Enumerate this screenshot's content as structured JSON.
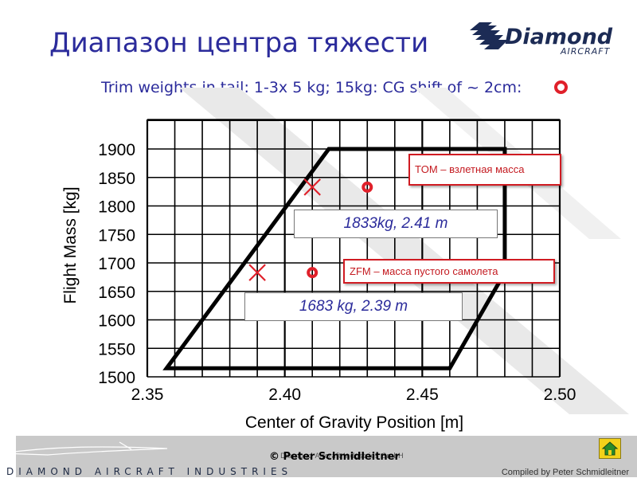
{
  "slide": {
    "title": "Диапазон центра тяжести",
    "trim_note": "Trim weights in tail: 1-3x 5 kg; 15kg: CG shift of ~ 2cm:",
    "logo": {
      "brand": "Diamond",
      "sub": "AIRCRAFT"
    }
  },
  "chart_data": {
    "type": "scatter",
    "xlabel": "Center of Gravity Position [m]",
    "ylabel": "Flight Mass [kg]",
    "xlim": [
      2.35,
      2.5
    ],
    "ylim": [
      1500,
      1900
    ],
    "xticks": [
      "2.35",
      "2.40",
      "2.45",
      "2.50"
    ],
    "yticks": [
      "1500",
      "1550",
      "1600",
      "1650",
      "1700",
      "1750",
      "1800",
      "1850",
      "1900"
    ],
    "grid": true,
    "envelope": [
      [
        2.357,
        1515
      ],
      [
        2.416,
        1900
      ],
      [
        2.48,
        1900
      ],
      [
        2.48,
        1683
      ],
      [
        2.46,
        1515
      ]
    ],
    "points": [
      {
        "label": "TOM",
        "marker": "cross",
        "x": 2.41,
        "y": 1833
      },
      {
        "label": "TOM",
        "marker": "circle",
        "x": 2.43,
        "y": 1833
      },
      {
        "label": "ZFM",
        "marker": "cross",
        "x": 2.39,
        "y": 1683
      },
      {
        "label": "ZFM",
        "marker": "circle",
        "x": 2.41,
        "y": 1683
      }
    ],
    "annotations": {
      "tom": "TOM – взлетная масса",
      "tom_value": "1833kg, 2.41 m",
      "zfm": "ZFM – масса пустого самолета",
      "zfm_value": "1683 kg, 2.39 m"
    },
    "colors": {
      "envelope": "#000000",
      "marker": "#e0202a",
      "grid": "#000000"
    }
  },
  "footer": {
    "brand": "DIAMOND AIRCRAFT INDUSTRIES",
    "copyright": "© Peter Schmidleitner",
    "ghost": "Diamond Aircraft Industries GmbH",
    "compiled": "Compiled by Peter Schmidleitner",
    "home_icon": "home-icon"
  }
}
